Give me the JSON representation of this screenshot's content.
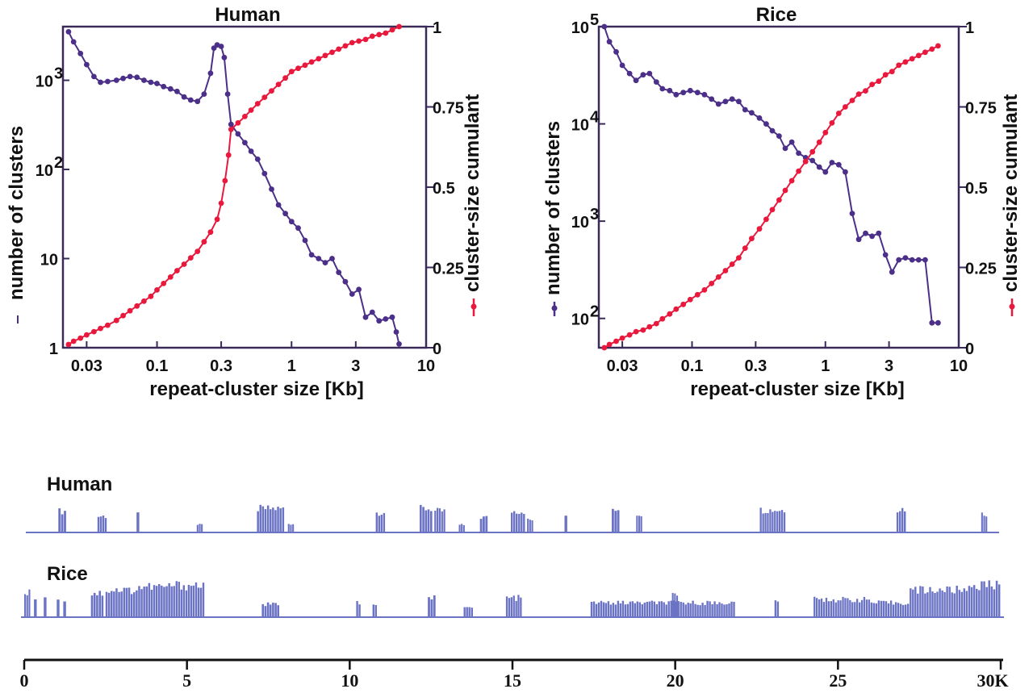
{
  "colors": {
    "clusters": "#4b2f88",
    "cumulant": "#e8193c",
    "track": "#6b73c4",
    "axis": "#111111"
  },
  "chart_data": [
    {
      "type": "line",
      "title": "Human",
      "xlabel": "repeat-cluster size [Kb]",
      "ylabel_left": "number of clusters",
      "ylabel_right": "cluster-size cumulant",
      "x_scale": "log",
      "y_left_scale": "log",
      "xlim": [
        0.02,
        10
      ],
      "ylim_left": [
        1,
        4000
      ],
      "ylim_right": [
        0,
        1
      ],
      "x_ticks": [
        "0.03",
        "0.1",
        "0.3",
        "1",
        "3",
        "10"
      ],
      "y_left_ticks": [
        "1",
        "10",
        "10",
        "10"
      ],
      "y_left_tick_exponents": [
        "",
        "",
        "2",
        "3"
      ],
      "y_right_ticks": [
        "0",
        "0.25",
        "0.5",
        "0.75",
        "1"
      ],
      "legend": "markers beside y-axis labels",
      "series": [
        {
          "axis": "left",
          "color": "#4b2f88",
          "x": [
            0.022,
            0.024,
            0.027,
            0.03,
            0.034,
            0.038,
            0.043,
            0.05,
            0.056,
            0.063,
            0.071,
            0.08,
            0.09,
            0.1,
            0.112,
            0.126,
            0.141,
            0.159,
            0.178,
            0.2,
            0.224,
            0.25,
            0.265,
            0.28,
            0.3,
            0.316,
            0.335,
            0.355,
            0.4,
            0.45,
            0.5,
            0.56,
            0.63,
            0.71,
            0.8,
            0.9,
            1.0,
            1.12,
            1.26,
            1.41,
            1.59,
            1.78,
            2.0,
            2.24,
            2.51,
            2.82,
            3.16,
            3.55,
            3.98,
            4.47,
            5.0,
            5.6,
            6.0,
            6.3
          ],
          "y": [
            3500,
            2700,
            2000,
            1500,
            1100,
            950,
            970,
            1000,
            1050,
            1100,
            1080,
            1000,
            950,
            920,
            850,
            800,
            750,
            650,
            600,
            580,
            700,
            1200,
            2300,
            2500,
            2400,
            1800,
            700,
            320,
            250,
            200,
            160,
            130,
            90,
            60,
            40,
            32,
            26,
            22,
            16,
            11,
            10,
            9,
            10,
            7,
            5.5,
            4,
            4.5,
            2.2,
            2.5,
            2,
            2.1,
            2.2,
            1.5,
            1.1
          ]
        },
        {
          "axis": "right",
          "color": "#e8193c",
          "x": [
            0.022,
            0.024,
            0.027,
            0.03,
            0.034,
            0.038,
            0.043,
            0.05,
            0.056,
            0.063,
            0.071,
            0.08,
            0.09,
            0.1,
            0.112,
            0.126,
            0.141,
            0.159,
            0.178,
            0.2,
            0.224,
            0.25,
            0.28,
            0.3,
            0.32,
            0.34,
            0.355,
            0.4,
            0.45,
            0.5,
            0.56,
            0.63,
            0.71,
            0.8,
            0.9,
            1.0,
            1.12,
            1.26,
            1.41,
            1.59,
            1.78,
            2.0,
            2.24,
            2.51,
            2.82,
            3.16,
            3.55,
            3.98,
            4.47,
            5.0,
            5.6,
            6.3
          ],
          "y": [
            0.01,
            0.02,
            0.03,
            0.04,
            0.05,
            0.06,
            0.07,
            0.085,
            0.1,
            0.115,
            0.13,
            0.145,
            0.16,
            0.18,
            0.2,
            0.22,
            0.24,
            0.26,
            0.28,
            0.3,
            0.33,
            0.36,
            0.4,
            0.45,
            0.52,
            0.6,
            0.68,
            0.7,
            0.72,
            0.74,
            0.76,
            0.78,
            0.8,
            0.82,
            0.84,
            0.86,
            0.87,
            0.88,
            0.89,
            0.9,
            0.91,
            0.92,
            0.93,
            0.94,
            0.95,
            0.955,
            0.96,
            0.97,
            0.975,
            0.98,
            0.99,
            1.0
          ]
        }
      ]
    },
    {
      "type": "line",
      "title": "Rice",
      "xlabel": "repeat-cluster size [Kb]",
      "ylabel_left": "number of clusters",
      "ylabel_right": "cluster-size cumulant",
      "x_scale": "log",
      "y_left_scale": "log",
      "xlim": [
        0.02,
        10
      ],
      "ylim_left": [
        50,
        100000
      ],
      "ylim_right": [
        0,
        1
      ],
      "x_ticks": [
        "0.03",
        "0.1",
        "0.3",
        "1",
        "3",
        "10"
      ],
      "y_left_ticks": [
        "10",
        "10",
        "10",
        "10"
      ],
      "y_left_tick_exponents": [
        "2",
        "3",
        "4",
        "5"
      ],
      "y_right_ticks": [
        "0",
        "0.25",
        "0.5",
        "0.75",
        "1"
      ],
      "legend": "markers beside y-axis labels",
      "series": [
        {
          "axis": "left",
          "color": "#4b2f88",
          "x": [
            0.022,
            0.024,
            0.027,
            0.03,
            0.034,
            0.038,
            0.043,
            0.048,
            0.054,
            0.06,
            0.068,
            0.076,
            0.086,
            0.097,
            0.11,
            0.124,
            0.14,
            0.158,
            0.178,
            0.2,
            0.224,
            0.25,
            0.28,
            0.32,
            0.36,
            0.4,
            0.45,
            0.5,
            0.56,
            0.63,
            0.71,
            0.8,
            0.9,
            1.0,
            1.12,
            1.26,
            1.41,
            1.59,
            1.78,
            2.0,
            2.24,
            2.51,
            2.82,
            3.16,
            3.55,
            3.98,
            4.47,
            5.0,
            5.6,
            6.3,
            7.0
          ],
          "y": [
            100000,
            70000,
            55000,
            40000,
            33000,
            28000,
            32000,
            33000,
            27000,
            23000,
            22000,
            20000,
            21000,
            22000,
            21000,
            20000,
            18000,
            16000,
            17000,
            18000,
            17000,
            14000,
            13000,
            11500,
            10000,
            8500,
            7500,
            5600,
            6500,
            5000,
            4500,
            4200,
            3600,
            3200,
            4000,
            3800,
            3200,
            1200,
            650,
            750,
            700,
            750,
            450,
            300,
            400,
            420,
            400,
            400,
            400,
            90,
            90
          ]
        },
        {
          "axis": "right",
          "color": "#e8193c",
          "x": [
            0.022,
            0.024,
            0.027,
            0.03,
            0.034,
            0.038,
            0.043,
            0.048,
            0.054,
            0.06,
            0.068,
            0.076,
            0.086,
            0.097,
            0.11,
            0.124,
            0.14,
            0.158,
            0.178,
            0.2,
            0.224,
            0.25,
            0.28,
            0.32,
            0.36,
            0.4,
            0.45,
            0.5,
            0.56,
            0.63,
            0.71,
            0.8,
            0.9,
            1.0,
            1.12,
            1.26,
            1.41,
            1.59,
            1.78,
            2.0,
            2.24,
            2.51,
            2.82,
            3.16,
            3.55,
            3.98,
            4.47,
            5.0,
            5.6,
            6.3,
            7.0
          ],
          "y": [
            0.0,
            0.01,
            0.02,
            0.03,
            0.04,
            0.05,
            0.055,
            0.065,
            0.075,
            0.09,
            0.105,
            0.12,
            0.135,
            0.15,
            0.165,
            0.18,
            0.2,
            0.22,
            0.24,
            0.26,
            0.28,
            0.31,
            0.34,
            0.37,
            0.4,
            0.43,
            0.46,
            0.49,
            0.52,
            0.55,
            0.58,
            0.61,
            0.64,
            0.67,
            0.7,
            0.73,
            0.75,
            0.77,
            0.79,
            0.8,
            0.82,
            0.83,
            0.85,
            0.86,
            0.88,
            0.89,
            0.9,
            0.91,
            0.92,
            0.93,
            0.94
          ]
        }
      ]
    },
    {
      "type": "bar",
      "title": "",
      "tracks": [
        {
          "label": "Human",
          "blocks": [
            [
              1.05,
              1.3,
              0.85
            ],
            [
              2.25,
              2.55,
              0.65
            ],
            [
              3.45,
              3.55,
              0.85
            ],
            [
              5.3,
              5.5,
              0.3
            ],
            [
              7.15,
              8.0,
              0.95
            ],
            [
              8.1,
              8.3,
              0.35
            ],
            [
              10.8,
              11.1,
              0.8
            ],
            [
              12.15,
              12.55,
              0.95
            ],
            [
              12.6,
              12.95,
              0.85
            ],
            [
              13.35,
              13.55,
              0.3
            ],
            [
              14.0,
              14.25,
              0.6
            ],
            [
              14.95,
              15.4,
              0.85
            ],
            [
              15.45,
              15.65,
              0.5
            ],
            [
              16.6,
              16.7,
              0.6
            ],
            [
              18.05,
              18.3,
              0.95
            ],
            [
              18.8,
              19.0,
              0.75
            ],
            [
              22.6,
              23.4,
              0.9
            ],
            [
              26.8,
              27.1,
              0.95
            ],
            [
              29.4,
              29.6,
              0.75
            ]
          ]
        },
        {
          "label": "Rice",
          "blocks": [
            [
              0.0,
              0.2,
              0.8
            ],
            [
              0.3,
              0.4,
              0.6
            ],
            [
              0.6,
              0.7,
              0.7
            ],
            [
              1.0,
              1.1,
              0.6
            ],
            [
              1.2,
              1.3,
              0.5
            ],
            [
              2.05,
              2.45,
              0.75
            ],
            [
              2.5,
              3.5,
              0.85
            ],
            [
              3.5,
              4.5,
              0.95
            ],
            [
              4.5,
              5.55,
              1.0
            ],
            [
              7.3,
              7.85,
              0.4
            ],
            [
              10.2,
              10.35,
              0.45
            ],
            [
              10.7,
              10.85,
              0.45
            ],
            [
              12.4,
              12.65,
              0.6
            ],
            [
              13.5,
              13.8,
              0.3
            ],
            [
              14.8,
              15.3,
              0.6
            ],
            [
              17.4,
              21.85,
              0.45
            ],
            [
              19.9,
              20.1,
              0.7
            ],
            [
              23.05,
              23.2,
              0.55
            ],
            [
              24.25,
              26.0,
              0.55
            ],
            [
              26.0,
              27.2,
              0.45
            ],
            [
              27.2,
              29.0,
              0.85
            ],
            [
              29.0,
              30.0,
              1.0
            ]
          ]
        }
      ],
      "axis_ticks": [
        "0",
        "5",
        "10",
        "15",
        "20",
        "25",
        "30K"
      ],
      "xlim": [
        0,
        30
      ]
    }
  ]
}
